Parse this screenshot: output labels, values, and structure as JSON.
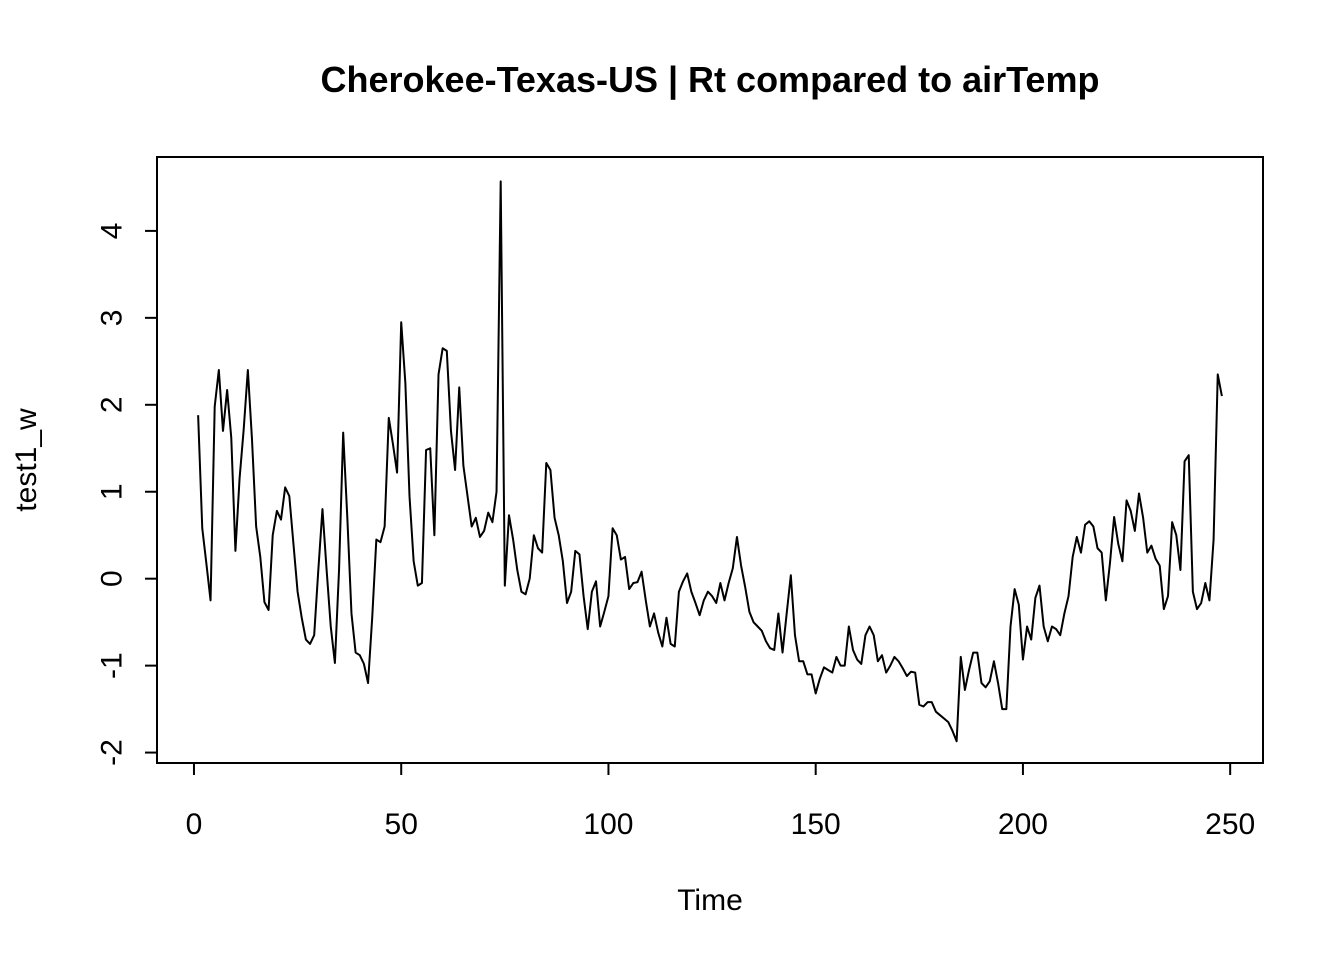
{
  "chart_data": {
    "type": "line",
    "title": "Cherokee-Texas-US | Rt compared to airTemp",
    "xlabel": "Time",
    "ylabel": "test1_w",
    "xlim": [
      -8.92,
      257.92
    ],
    "ylim": [
      -2.12,
      4.85
    ],
    "xticks": [
      0,
      50,
      100,
      150,
      200,
      250
    ],
    "yticks": [
      -2,
      -1,
      0,
      1,
      2,
      3,
      4
    ],
    "grid": false,
    "legend": "none",
    "line_color": "#000000",
    "series": [
      {
        "x_start": 1,
        "x_step": 1,
        "values": [
          1.88,
          0.58,
          0.17,
          -0.25,
          1.98,
          2.4,
          1.7,
          2.17,
          1.62,
          0.32,
          1.15,
          1.72,
          2.4,
          1.6,
          0.6,
          0.25,
          -0.27,
          -0.36,
          0.5,
          0.78,
          0.68,
          1.05,
          0.95,
          0.4,
          -0.15,
          -0.45,
          -0.7,
          -0.75,
          -0.65,
          0.1,
          0.8,
          0.1,
          -0.55,
          -0.97,
          0.1,
          1.68,
          0.7,
          -0.4,
          -0.85,
          -0.88,
          -0.98,
          -1.2,
          -0.45,
          0.45,
          0.42,
          0.6,
          1.85,
          1.55,
          1.22,
          2.95,
          2.25,
          0.95,
          0.2,
          -0.08,
          -0.05,
          1.48,
          1.5,
          0.5,
          2.35,
          2.65,
          2.62,
          1.7,
          1.25,
          2.2,
          1.3,
          0.95,
          0.6,
          0.7,
          0.48,
          0.55,
          0.76,
          0.65,
          1.0,
          4.57,
          -0.08,
          0.73,
          0.45,
          0.1,
          -0.15,
          -0.18,
          0.0,
          0.5,
          0.35,
          0.3,
          1.33,
          1.25,
          0.7,
          0.5,
          0.2,
          -0.28,
          -0.15,
          0.32,
          0.28,
          -0.2,
          -0.58,
          -0.15,
          -0.03,
          -0.55,
          -0.38,
          -0.2,
          0.58,
          0.5,
          0.22,
          0.25,
          -0.12,
          -0.05,
          -0.04,
          0.08,
          -0.25,
          -0.55,
          -0.4,
          -0.62,
          -0.78,
          -0.45,
          -0.75,
          -0.78,
          -0.15,
          -0.03,
          0.06,
          -0.15,
          -0.28,
          -0.42,
          -0.25,
          -0.15,
          -0.2,
          -0.28,
          -0.05,
          -0.25,
          -0.05,
          0.12,
          0.48,
          0.15,
          -0.1,
          -0.38,
          -0.5,
          -0.55,
          -0.6,
          -0.72,
          -0.8,
          -0.82,
          -0.4,
          -0.85,
          -0.4,
          0.04,
          -0.65,
          -0.95,
          -0.95,
          -1.1,
          -1.1,
          -1.32,
          -1.15,
          -1.02,
          -1.05,
          -1.08,
          -0.9,
          -1.0,
          -1.0,
          -0.55,
          -0.82,
          -0.93,
          -0.98,
          -0.65,
          -0.55,
          -0.65,
          -0.95,
          -0.88,
          -1.08,
          -1.0,
          -0.9,
          -0.95,
          -1.03,
          -1.12,
          -1.07,
          -1.08,
          -1.45,
          -1.47,
          -1.42,
          -1.42,
          -1.53,
          -1.57,
          -1.61,
          -1.65,
          -1.75,
          -1.87,
          -0.9,
          -1.28,
          -1.05,
          -0.85,
          -0.85,
          -1.2,
          -1.25,
          -1.18,
          -0.95,
          -1.2,
          -1.5,
          -1.5,
          -0.55,
          -0.12,
          -0.3,
          -0.93,
          -0.55,
          -0.7,
          -0.22,
          -0.08,
          -0.55,
          -0.72,
          -0.55,
          -0.58,
          -0.65,
          -0.4,
          -0.2,
          0.25,
          0.48,
          0.3,
          0.62,
          0.66,
          0.6,
          0.35,
          0.3,
          -0.25,
          0.18,
          0.71,
          0.4,
          0.2,
          0.9,
          0.78,
          0.55,
          0.98,
          0.7,
          0.3,
          0.38,
          0.23,
          0.15,
          -0.35,
          -0.2,
          0.65,
          0.5,
          0.1,
          1.35,
          1.42,
          -0.15,
          -0.35,
          -0.28,
          -0.05,
          -0.25,
          0.45,
          2.35,
          2.1
        ]
      }
    ]
  }
}
